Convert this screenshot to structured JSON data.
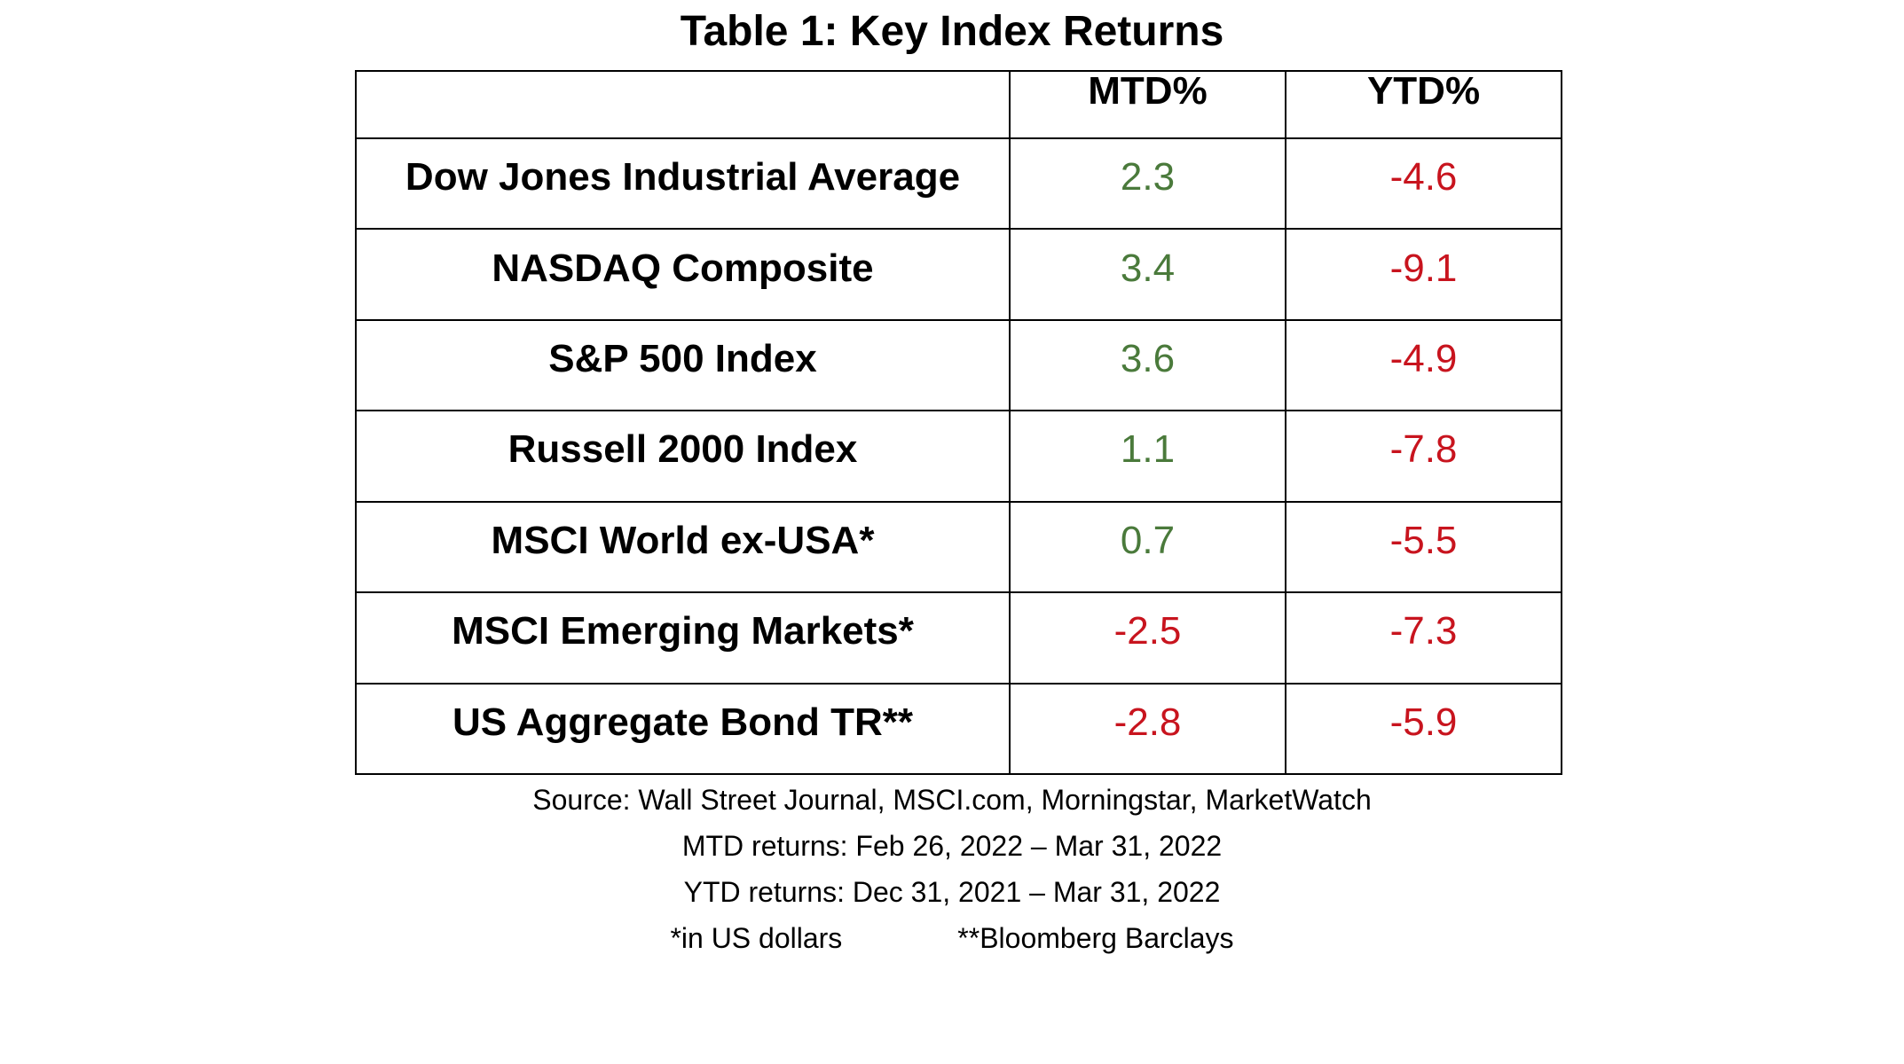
{
  "title": "Table 1: Key Index Returns",
  "colors": {
    "positive": "#4a7a3b",
    "negative": "#c8141e",
    "text": "#000000"
  },
  "table": {
    "headers": [
      "",
      "MTD%",
      "YTD%"
    ],
    "rows": [
      {
        "name": "Dow Jones Industrial Average",
        "mtd": "2.3",
        "ytd": "-4.6"
      },
      {
        "name": "NASDAQ Composite",
        "mtd": "3.4",
        "ytd": "-9.1"
      },
      {
        "name": "S&P 500 Index",
        "mtd": "3.6",
        "ytd": "-4.9"
      },
      {
        "name": "Russell 2000 Index",
        "mtd": "1.1",
        "ytd": "-7.8"
      },
      {
        "name": "MSCI World ex-USA*",
        "mtd": "0.7",
        "ytd": "-5.5"
      },
      {
        "name": "MSCI Emerging Markets*",
        "mtd": "-2.5",
        "ytd": "-7.3"
      },
      {
        "name": "US Aggregate Bond TR**",
        "mtd": "-2.8",
        "ytd": "-5.9"
      }
    ]
  },
  "notes": {
    "source": "Source: Wall Street Journal, MSCI.com, Morningstar, MarketWatch",
    "mtd_range": "MTD returns: Feb 26, 2022 – Mar 31, 2022",
    "ytd_range": "YTD returns: Dec 31, 2021 – Mar 31, 2022",
    "footnote_1": "*in US dollars",
    "footnote_2": "**Bloomberg Barclays"
  }
}
